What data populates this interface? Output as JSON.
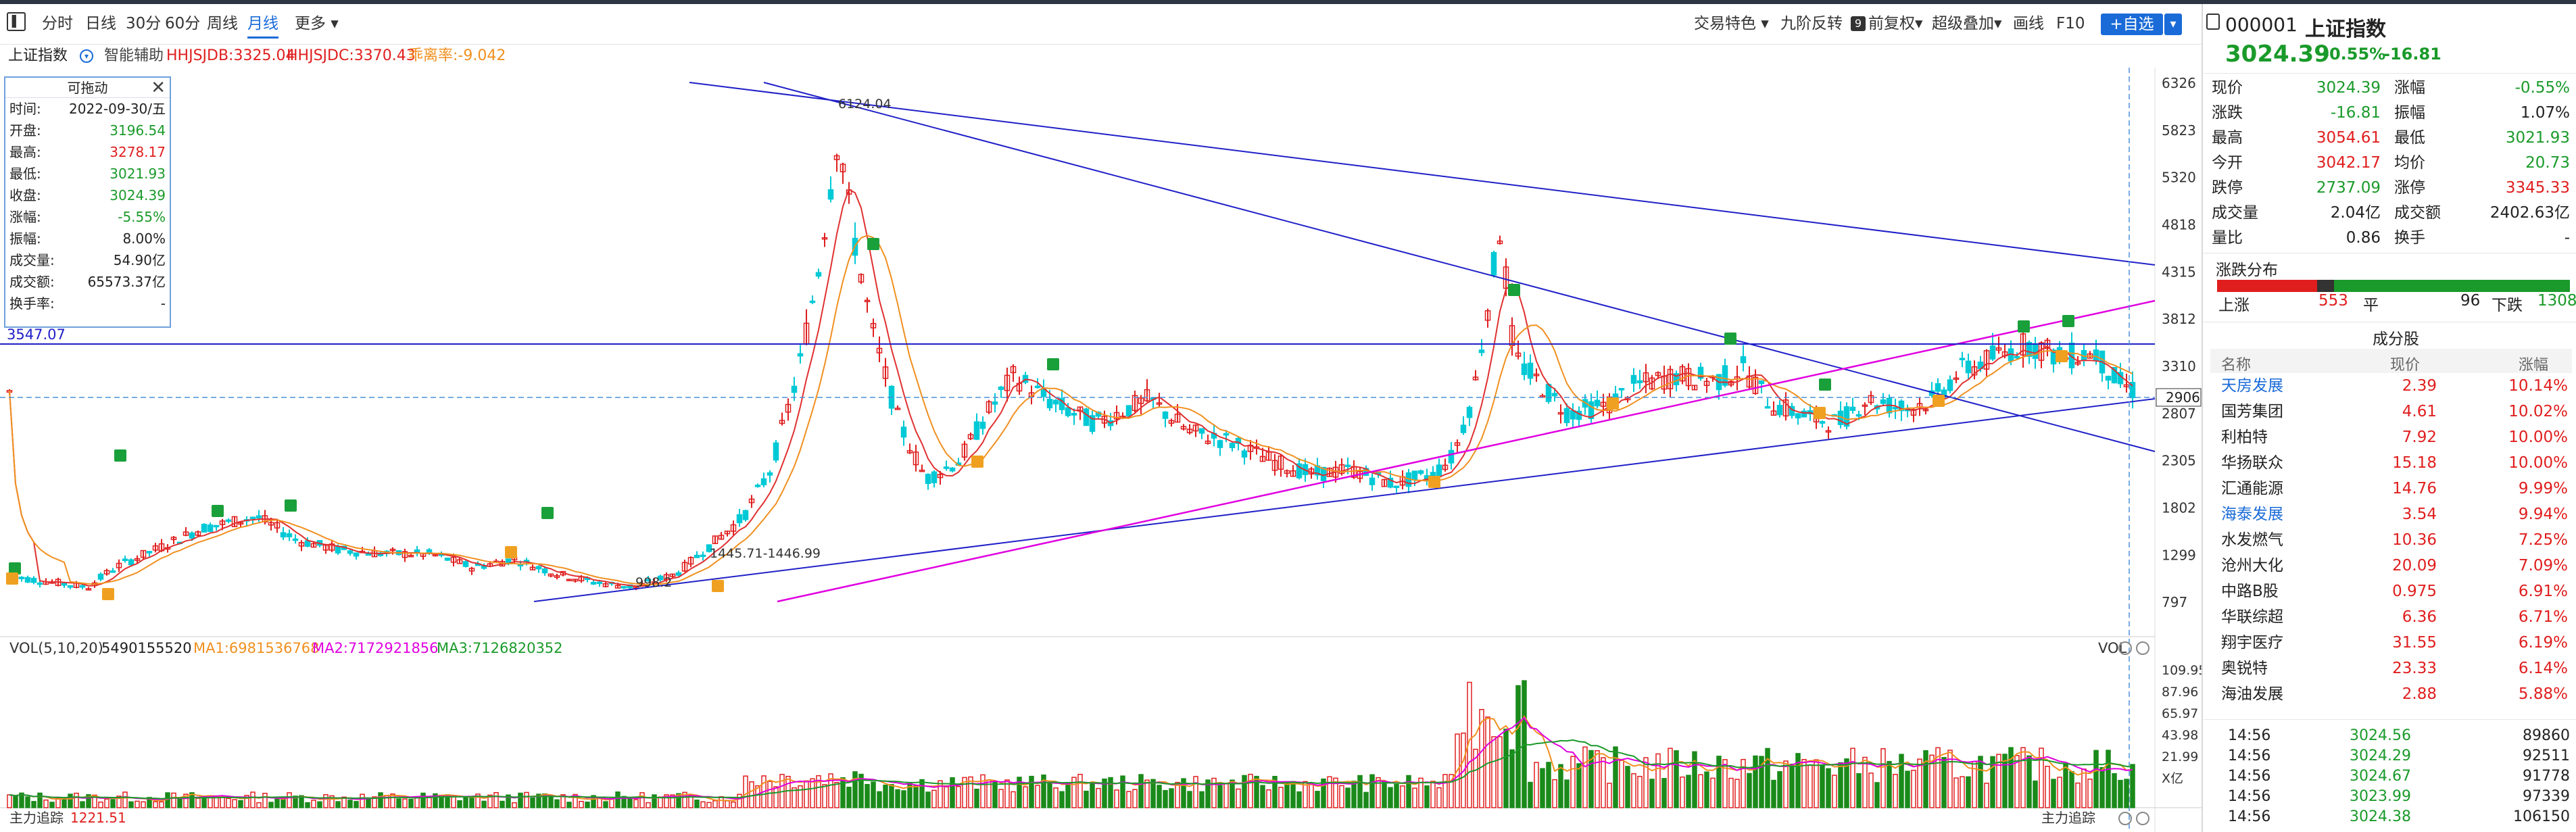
{
  "toolbar": {
    "tabs": [
      "分时",
      "日线",
      "30分",
      "60分",
      "周线",
      "月线",
      "更多 ▾"
    ],
    "active_tab": "月线",
    "right_items": [
      "交易特色 ▾",
      "九阶反转",
      "前复权▾",
      "超级叠加▾",
      "画线",
      "F10"
    ],
    "add_fav": "+自选",
    "add_fav_arrow": "▾",
    "nine_badge": "9"
  },
  "infobar": {
    "index_name": "上证指数",
    "assist": "智能辅助",
    "hhsjdb": "HHJSJDB:3325.04",
    "hhsjdc": "HHJSJDC:3370.43",
    "tangzhou": "乖离率:-9.042"
  },
  "popup": {
    "title": "可拖动",
    "rows": [
      {
        "label": "时间:",
        "value": "2022-09-30/五",
        "color": "#222"
      },
      {
        "label": "开盘:",
        "value": "3196.54",
        "color": "#1a9a2a"
      },
      {
        "label": "最高:",
        "value": "3278.17",
        "color": "#e01e1e"
      },
      {
        "label": "最低:",
        "value": "3021.93",
        "color": "#1a9a2a"
      },
      {
        "label": "收盘:",
        "value": "3024.39",
        "color": "#1a9a2a"
      },
      {
        "label": "涨幅:",
        "value": "-5.55%",
        "color": "#1a9a2a"
      },
      {
        "label": "振幅:",
        "value": "8.00%",
        "color": "#222"
      },
      {
        "label": "成交量:",
        "value": "54.90亿",
        "color": "#222"
      },
      {
        "label": "成交额:",
        "value": "65573.37亿",
        "color": "#222"
      },
      {
        "label": "换手率:",
        "value": "-",
        "color": "#222"
      }
    ]
  },
  "price_axis": [
    "6326",
    "5823",
    "5320",
    "4818",
    "4315",
    "3812",
    "3310",
    "2807",
    "2305",
    "1802",
    "1299",
    "797"
  ],
  "current_price_tag": "2906",
  "level_line_label": "3547.07",
  "annotations": {
    "peak": "6124.04",
    "low1": "998.2",
    "low2": "1445.71-1446.99"
  },
  "volume_bar": {
    "title": "VOL(5,10,20)",
    "vol": "5490155520",
    "ma1": "MA1:6981536768",
    "ma2": "MA2:7172921856",
    "ma3": "MA3:7126820352",
    "right_label": "VOL",
    "axis": [
      "109.95",
      "87.96",
      "65.97",
      "43.98",
      "21.99",
      "X亿"
    ]
  },
  "main_force": {
    "left_label": "主力追踪",
    "left_value": "1221.51",
    "right_label": "主力追踪"
  },
  "quote": {
    "code": "000001",
    "name": "上证指数",
    "price": "3024.39",
    "change_pct": "-0.55%",
    "change": "-16.81",
    "rows": [
      [
        {
          "l": "现价",
          "v": "3024.39",
          "c": "grn"
        },
        {
          "l": "涨幅",
          "v": "-0.55%",
          "c": "grn"
        }
      ],
      [
        {
          "l": "涨跌",
          "v": "-16.81",
          "c": "grn"
        },
        {
          "l": "振幅",
          "v": "1.07%",
          "c": ""
        }
      ],
      [
        {
          "l": "最高",
          "v": "3054.61",
          "c": "red"
        },
        {
          "l": "最低",
          "v": "3021.93",
          "c": "grn"
        }
      ],
      [
        {
          "l": "今开",
          "v": "3042.17",
          "c": "red"
        },
        {
          "l": "均价",
          "v": "20.73",
          "c": "grn"
        }
      ],
      [
        {
          "l": "跌停",
          "v": "2737.09",
          "c": "grn"
        },
        {
          "l": "涨停",
          "v": "3345.33",
          "c": "red"
        }
      ],
      [
        {
          "l": "成交量",
          "v": "2.04亿",
          "c": ""
        },
        {
          "l": "成交额",
          "v": "2402.63亿",
          "c": ""
        }
      ],
      [
        {
          "l": "量比",
          "v": "0.86",
          "c": ""
        },
        {
          "l": "换手",
          "v": "-",
          "c": ""
        }
      ]
    ]
  },
  "distribution": {
    "title": "涨跌分布",
    "up_label": "上涨",
    "up": "553",
    "flat_label": "平",
    "flat": "96",
    "down_label": "下跌",
    "down": "1308"
  },
  "constituents": {
    "title": "成分股",
    "headers": [
      "名称",
      "现价",
      "涨幅"
    ],
    "rows": [
      {
        "name": "天房发展",
        "price": "2.39",
        "pct": "10.14%",
        "blue": true
      },
      {
        "name": "国芳集团",
        "price": "4.61",
        "pct": "10.02%",
        "blue": false
      },
      {
        "name": "利柏特",
        "price": "7.92",
        "pct": "10.00%",
        "blue": false
      },
      {
        "name": "华扬联众",
        "price": "15.18",
        "pct": "10.00%",
        "blue": false
      },
      {
        "name": "汇通能源",
        "price": "14.76",
        "pct": "9.99%",
        "blue": false
      },
      {
        "name": "海泰发展",
        "price": "3.54",
        "pct": "9.94%",
        "blue": true
      },
      {
        "name": "水发燃气",
        "price": "10.36",
        "pct": "7.25%",
        "blue": false
      },
      {
        "name": "沧州大化",
        "price": "20.09",
        "pct": "7.09%",
        "blue": false
      },
      {
        "name": "中路B股",
        "price": "0.975",
        "pct": "6.91%",
        "blue": false
      },
      {
        "name": "华联综超",
        "price": "6.36",
        "pct": "6.71%",
        "blue": false
      },
      {
        "name": "翔宇医疗",
        "price": "31.55",
        "pct": "6.19%",
        "blue": false
      },
      {
        "name": "奥锐特",
        "price": "23.33",
        "pct": "6.14%",
        "blue": false
      },
      {
        "name": "海油发展",
        "price": "2.88",
        "pct": "5.88%",
        "blue": false
      }
    ]
  },
  "ticks": [
    {
      "time": "14:56",
      "price": "3024.56",
      "vol": "89860"
    },
    {
      "time": "14:56",
      "price": "3024.29",
      "vol": "92511"
    },
    {
      "time": "14:56",
      "price": "3024.67",
      "vol": "91778"
    },
    {
      "time": "14:56",
      "price": "3023.99",
      "vol": "97339"
    },
    {
      "time": "14:56",
      "price": "3024.38",
      "vol": "106150"
    }
  ],
  "colors": {
    "up": "#e01e1e",
    "down": "#00c9d6",
    "vol_down": "#1a8a1a",
    "ma5": "#e03030",
    "ma10": "#f09020",
    "ma20": "#e000e0",
    "accent": "#1a6bd8"
  }
}
